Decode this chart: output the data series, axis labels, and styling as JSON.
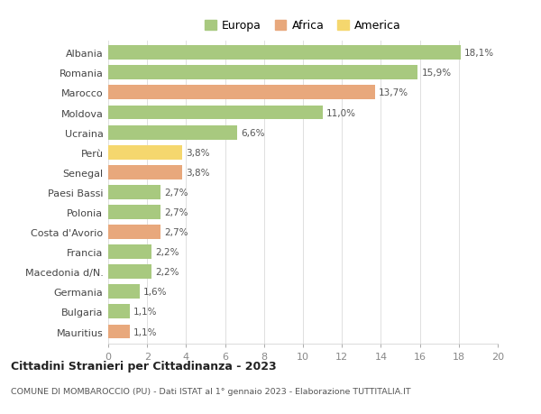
{
  "categories": [
    "Albania",
    "Romania",
    "Marocco",
    "Moldova",
    "Ucraina",
    "Perù",
    "Senegal",
    "Paesi Bassi",
    "Polonia",
    "Costa d'Avorio",
    "Francia",
    "Macedonia d/N.",
    "Germania",
    "Bulgaria",
    "Mauritius"
  ],
  "values": [
    18.1,
    15.9,
    13.7,
    11.0,
    6.6,
    3.8,
    3.8,
    2.7,
    2.7,
    2.7,
    2.2,
    2.2,
    1.6,
    1.1,
    1.1
  ],
  "labels": [
    "18,1%",
    "15,9%",
    "13,7%",
    "11,0%",
    "6,6%",
    "3,8%",
    "3,8%",
    "2,7%",
    "2,7%",
    "2,7%",
    "2,2%",
    "2,2%",
    "1,6%",
    "1,1%",
    "1,1%"
  ],
  "continents": [
    "Europa",
    "Europa",
    "Africa",
    "Europa",
    "Europa",
    "America",
    "Africa",
    "Europa",
    "Europa",
    "Africa",
    "Europa",
    "Europa",
    "Europa",
    "Europa",
    "Africa"
  ],
  "colors": {
    "Europa": "#a8c97f",
    "Africa": "#e8a87c",
    "America": "#f5d76e"
  },
  "title": "Cittadini Stranieri per Cittadinanza - 2023",
  "subtitle": "COMUNE DI MOMBAROCCIO (PU) - Dati ISTAT al 1° gennaio 2023 - Elaborazione TUTTITALIA.IT",
  "xlim": [
    0,
    20
  ],
  "xticks": [
    0,
    2,
    4,
    6,
    8,
    10,
    12,
    14,
    16,
    18,
    20
  ],
  "background_color": "#ffffff",
  "grid_color": "#e0e0e0"
}
